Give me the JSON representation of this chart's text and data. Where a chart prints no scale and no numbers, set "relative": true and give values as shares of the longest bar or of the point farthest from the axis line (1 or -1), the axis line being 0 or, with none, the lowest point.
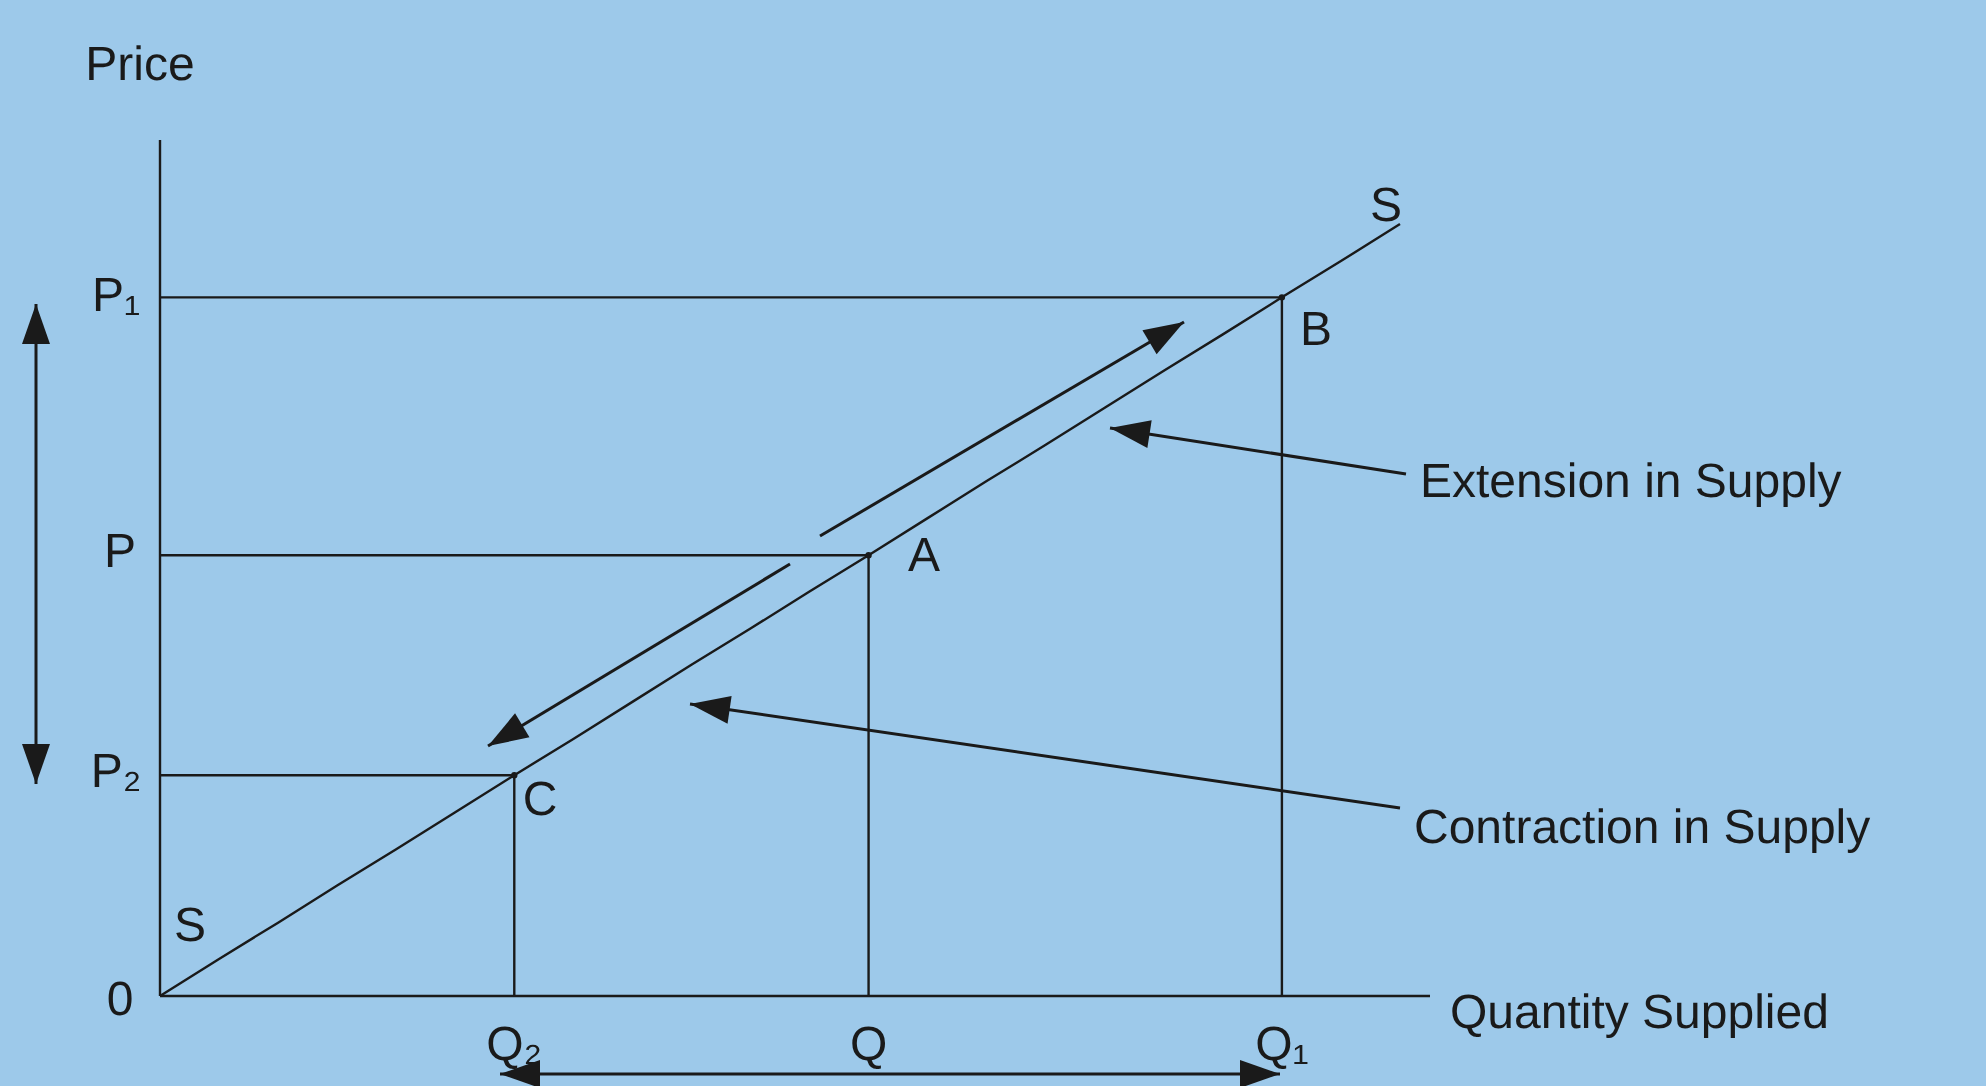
{
  "chart_data": {
    "type": "line",
    "xlabel": "Quantity Supplied",
    "ylabel": "Price",
    "relative": true,
    "categories": [
      null,
      null,
      null,
      null,
      null,
      null,
      "Q₂",
      null,
      null,
      null,
      null,
      null,
      "Q",
      null,
      null,
      null,
      null,
      null,
      null,
      "Q₁",
      null,
      null
    ],
    "series": [
      {
        "color": "#1a1a1a",
        "values": [
          0,
          0.048,
          0.095,
          0.143,
          0.19,
          0.238,
          0.286,
          0.333,
          0.381,
          0.429,
          0.476,
          0.524,
          0.571,
          0.619,
          0.667,
          0.714,
          0.762,
          0.81,
          0.857,
          0.905,
          0.952,
          1
        ]
      },
      {
        "color": "#1a1a1a",
        "values": [
          0.905,
          0.905,
          0.905,
          0.905,
          0.905,
          0.905,
          0.905,
          0.905,
          0.905,
          0.905,
          0.905,
          0.905,
          0.905,
          0.905,
          0.905,
          0.905,
          0.905,
          0.905,
          0.905,
          0.905,
          null,
          null
        ]
      },
      {
        "color": "#1a1a1a",
        "values": [
          0.571,
          0.571,
          0.571,
          0.571,
          0.571,
          0.571,
          0.571,
          0.571,
          0.571,
          0.571,
          0.571,
          0.571,
          0.571,
          null,
          null,
          null,
          null,
          null,
          null,
          null,
          null,
          null
        ]
      },
      {
        "color": "#1a1a1a",
        "values": [
          0.286,
          0.286,
          0.286,
          0.286,
          0.286,
          0.286,
          0.286,
          null,
          null,
          null,
          null,
          null,
          null,
          null,
          null,
          null,
          null,
          null,
          null,
          null,
          null,
          null
        ]
      },
      {
        "type": "lollipop",
        "marker": "circle",
        "color": "#1a1a1a",
        "values": [
          null,
          null,
          null,
          null,
          null,
          null,
          0.286,
          null,
          null,
          null,
          null,
          null,
          0.571,
          null,
          null,
          null,
          null,
          null,
          null,
          0.905,
          null,
          null
        ]
      }
    ],
    "annotations": [
      "P₁",
      "P",
      "P₂",
      "0",
      "S",
      "S",
      "B",
      "A",
      "C",
      "Extension in Supply",
      "Contraction in Supply"
    ],
    "marker": "none",
    "line_style": "solid"
  }
}
